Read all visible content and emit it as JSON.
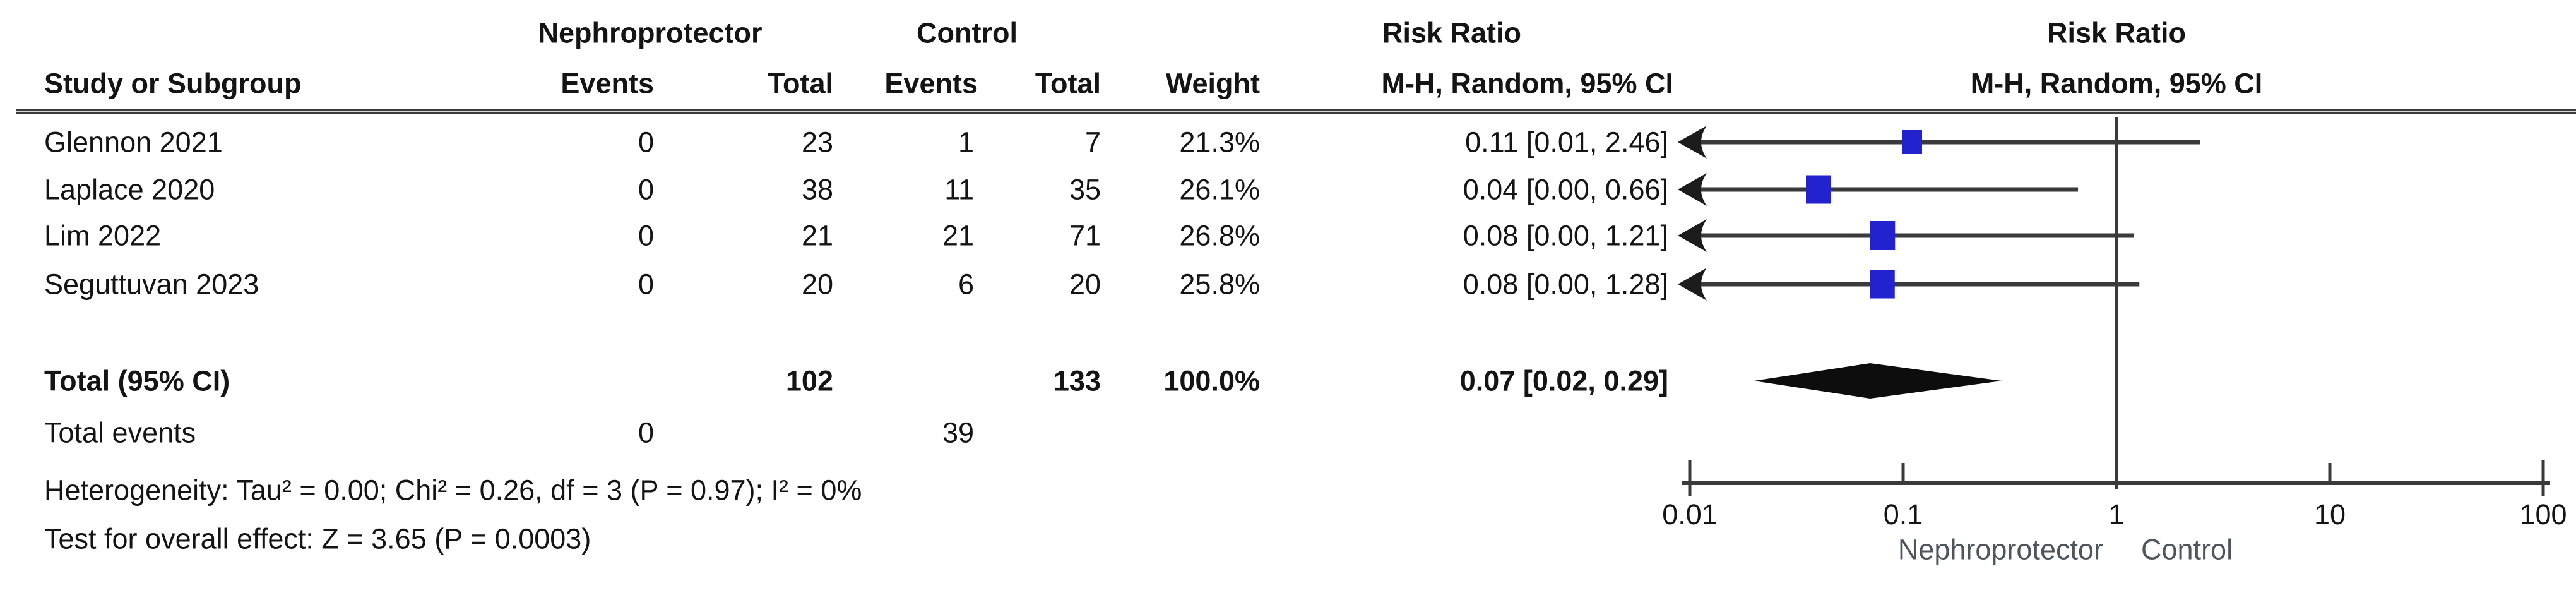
{
  "columns": {
    "group_experimental": "Nephroprotector",
    "group_control": "Control",
    "risk_ratio_left": "Risk Ratio",
    "risk_ratio_right": "Risk Ratio",
    "study": "Study or Subgroup",
    "exp_events": "Events",
    "exp_total": "Total",
    "ctrl_events": "Events",
    "ctrl_total": "Total",
    "weight": "Weight",
    "mh_left": "M-H, Random, 95% CI",
    "mh_right": "M-H, Random, 95% CI"
  },
  "rows": [
    {
      "study": "Glennon 2021",
      "exp_events": "0",
      "exp_total": "23",
      "ctrl_events": "1",
      "ctrl_total": "7",
      "weight": "21.3%",
      "rr_ci": "0.11 [0.01, 2.46]"
    },
    {
      "study": "Laplace 2020",
      "exp_events": "0",
      "exp_total": "38",
      "ctrl_events": "11",
      "ctrl_total": "35",
      "weight": "26.1%",
      "rr_ci": "0.04 [0.00, 0.66]"
    },
    {
      "study": "Lim 2022",
      "exp_events": "0",
      "exp_total": "21",
      "ctrl_events": "21",
      "ctrl_total": "71",
      "weight": "26.8%",
      "rr_ci": "0.08 [0.00, 1.21]"
    },
    {
      "study": "Seguttuvan 2023",
      "exp_events": "0",
      "exp_total": "20",
      "ctrl_events": "6",
      "ctrl_total": "20",
      "weight": "25.8%",
      "rr_ci": "0.08 [0.00, 1.28]"
    }
  ],
  "total_row": {
    "label": "Total (95% CI)",
    "exp_total": "102",
    "ctrl_total": "133",
    "weight": "100.0%",
    "rr_ci": "0.07 [0.02, 0.29]"
  },
  "total_events": {
    "label": "Total events",
    "exp": "0",
    "ctrl": "39"
  },
  "footnotes": {
    "heterogeneity": "Heterogeneity: Tau² = 0.00; Chi² = 0.26, df = 3 (P = 0.97); I² = 0%",
    "overall_effect": "Test for overall effect: Z = 3.65 (P = 0.0003)"
  },
  "axis": {
    "tick_labels": [
      "0.01",
      "0.1",
      "1",
      "10",
      "100"
    ],
    "caption_left": "Nephroprotector",
    "caption_right": "Control"
  },
  "colors": {
    "square": "#2222cf",
    "diamond": "#0d0d0d",
    "line": "#3a3a3a",
    "caption": "#4d565f",
    "text": "#141414"
  },
  "chart_data": {
    "type": "scatter",
    "subtype": "forest-plot",
    "title": "Risk Ratio",
    "effect_measure": "Risk Ratio",
    "model": "M-H, Random, 95% CI",
    "x_scale": "log10",
    "x_range": [
      0.01,
      100
    ],
    "x_ticks": [
      0.01,
      0.1,
      1,
      10,
      100
    ],
    "null_line": 1,
    "studies": [
      {
        "study": "Glennon 2021",
        "exp_events": 0,
        "exp_total": 23,
        "ctrl_events": 1,
        "ctrl_total": 7,
        "weight_pct": 21.3,
        "rr": 0.11,
        "ci_low": 0.01,
        "ci_high": 2.46,
        "ci_low_off_scale": true
      },
      {
        "study": "Laplace 2020",
        "exp_events": 0,
        "exp_total": 38,
        "ctrl_events": 11,
        "ctrl_total": 35,
        "weight_pct": 26.1,
        "rr": 0.04,
        "ci_low": 0.0,
        "ci_high": 0.66,
        "ci_low_off_scale": true
      },
      {
        "study": "Lim 2022",
        "exp_events": 0,
        "exp_total": 21,
        "ctrl_events": 21,
        "ctrl_total": 71,
        "weight_pct": 26.8,
        "rr": 0.08,
        "ci_low": 0.0,
        "ci_high": 1.21,
        "ci_low_off_scale": true
      },
      {
        "study": "Seguttuvan 2023",
        "exp_events": 0,
        "exp_total": 20,
        "ctrl_events": 6,
        "ctrl_total": 20,
        "weight_pct": 25.8,
        "rr": 0.08,
        "ci_low": 0.0,
        "ci_high": 1.28,
        "ci_low_off_scale": true
      }
    ],
    "overall": {
      "label": "Total (95% CI)",
      "rr": 0.07,
      "ci_low": 0.02,
      "ci_high": 0.29,
      "weight_pct": 100.0,
      "exp_total": 102,
      "ctrl_total": 133
    },
    "heterogeneity": "Tau² = 0.00; Chi² = 0.26, df = 3 (P = 0.97); I² = 0%",
    "overall_effect_test": "Z = 3.65 (P = 0.0003)"
  }
}
